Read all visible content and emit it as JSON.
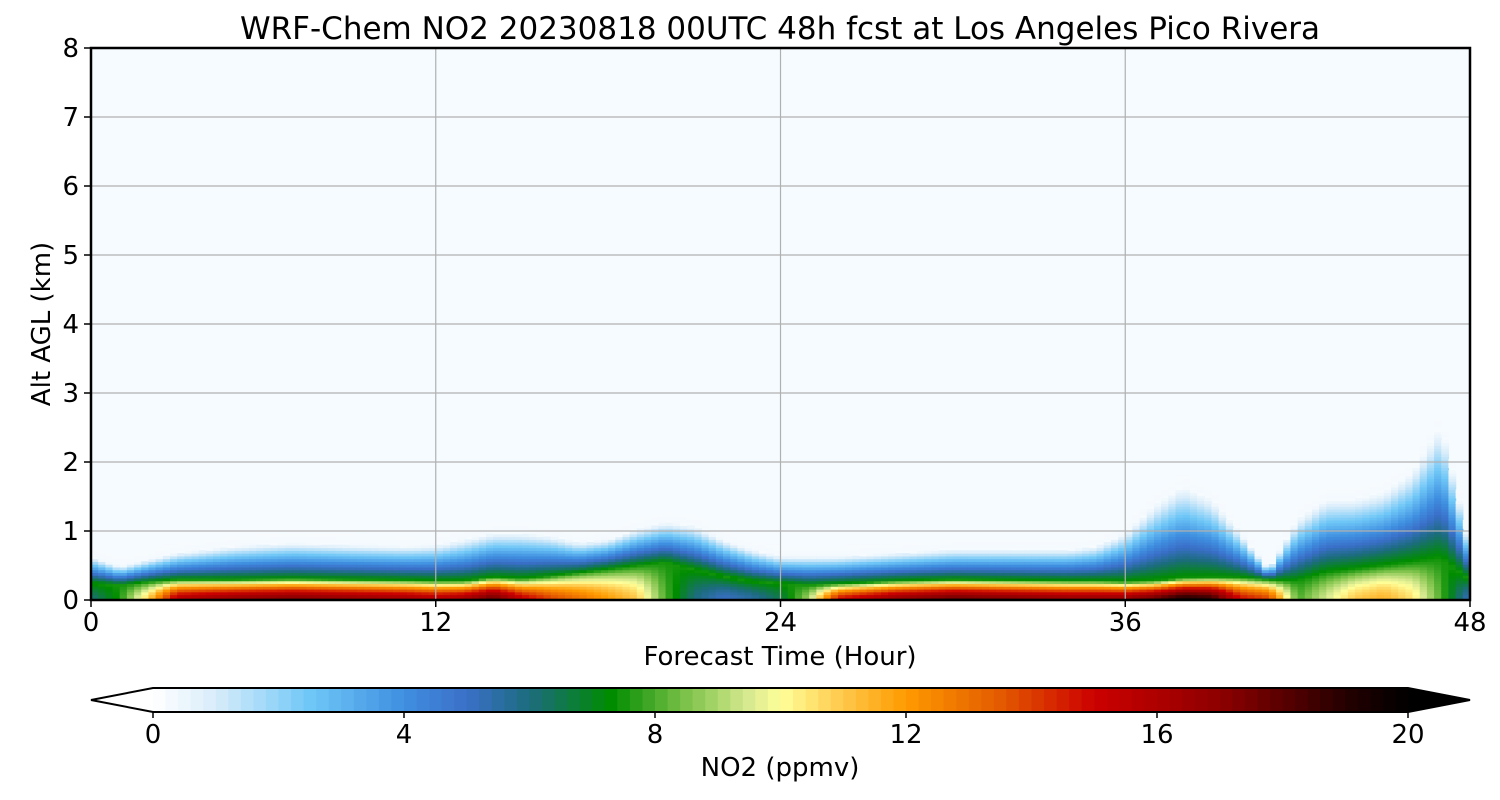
{
  "chart_data": {
    "type": "heatmap",
    "title": "WRF-Chem NO2  20230818 00UTC 48h fcst at Los Angeles Pico Rivera",
    "xlabel": "Forecast Time (Hour)",
    "ylabel": "Alt AGL (km)",
    "xlim": [
      0,
      48
    ],
    "ylim": [
      0,
      8
    ],
    "xticks": [
      0,
      12,
      24,
      36,
      48
    ],
    "yticks": [
      0,
      1,
      2,
      3,
      4,
      5,
      6,
      7,
      8
    ],
    "grid": true,
    "colorbar": {
      "label": "NO2  (ppmv)",
      "range": [
        0,
        20
      ],
      "ticks": [
        0,
        4,
        8,
        12,
        16,
        20
      ],
      "extend": "both",
      "orientation": "horizontal",
      "colors": [
        {
          "v": 0,
          "c": "#ffffff"
        },
        {
          "v": 1,
          "c": "#d8ecfa"
        },
        {
          "v": 2.5,
          "c": "#6fc7f7"
        },
        {
          "v": 4,
          "c": "#3f8fe0"
        },
        {
          "v": 5,
          "c": "#3a6fc8"
        },
        {
          "v": 6,
          "c": "#1c6c7e"
        },
        {
          "v": 7.3,
          "c": "#008c00"
        },
        {
          "v": 8.5,
          "c": "#7dc24a"
        },
        {
          "v": 9.5,
          "c": "#d8ea90"
        },
        {
          "v": 10,
          "c": "#ffff99"
        },
        {
          "v": 11,
          "c": "#ffc84a"
        },
        {
          "v": 12,
          "c": "#ff9a00"
        },
        {
          "v": 13.5,
          "c": "#e35a00"
        },
        {
          "v": 15,
          "c": "#cc0000"
        },
        {
          "v": 17,
          "c": "#8e0000"
        },
        {
          "v": 19,
          "c": "#250000"
        },
        {
          "v": 20,
          "c": "#000000"
        }
      ]
    },
    "profile_times": [
      0,
      1,
      2,
      3,
      5,
      7,
      9,
      11,
      12,
      13,
      14,
      15,
      16,
      17,
      18,
      19,
      20,
      21,
      22,
      23,
      24,
      25,
      26,
      28,
      30,
      32,
      34,
      35,
      36,
      37,
      38,
      39,
      40,
      41,
      42,
      43,
      44,
      45,
      46,
      47,
      48
    ],
    "surface_max_ppmv": [
      6,
      7.5,
      11,
      16,
      17,
      17.5,
      17,
      16.5,
      16,
      16.5,
      18,
      15.5,
      14,
      13,
      12,
      11,
      8,
      6,
      5,
      5.5,
      6.5,
      9,
      15,
      17,
      18,
      17.5,
      17,
      17,
      17,
      18,
      19.5,
      19,
      15,
      14,
      8,
      9.5,
      11,
      11.5,
      10.5,
      8,
      5
    ],
    "mixing_height_km": [
      0.25,
      0.22,
      0.27,
      0.3,
      0.3,
      0.31,
      0.3,
      0.29,
      0.28,
      0.28,
      0.33,
      0.31,
      0.35,
      0.4,
      0.45,
      0.5,
      0.55,
      0.45,
      0.35,
      0.28,
      0.25,
      0.22,
      0.24,
      0.28,
      0.3,
      0.29,
      0.28,
      0.28,
      0.27,
      0.28,
      0.32,
      0.33,
      0.33,
      0.3,
      0.28,
      0.4,
      0.45,
      0.5,
      0.55,
      0.6,
      0.3
    ],
    "outer_extent_km": [
      0.65,
      0.5,
      0.6,
      0.7,
      0.8,
      0.85,
      0.82,
      0.8,
      0.82,
      0.9,
      1.0,
      1.0,
      0.95,
      0.85,
      0.9,
      1.05,
      1.15,
      1.1,
      0.9,
      0.75,
      0.65,
      0.65,
      0.65,
      0.7,
      0.75,
      0.75,
      0.75,
      0.8,
      1.0,
      1.4,
      1.7,
      1.5,
      1.0,
      0.45,
      1.2,
      1.5,
      1.5,
      1.6,
      1.9,
      2.6,
      0.8
    ]
  }
}
